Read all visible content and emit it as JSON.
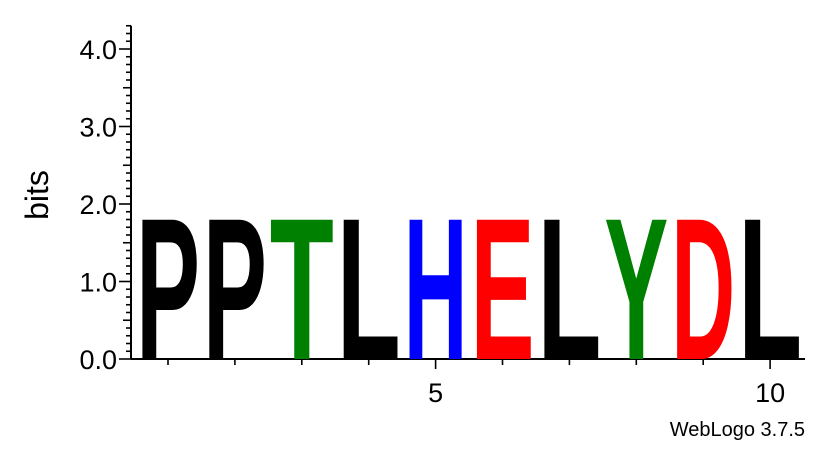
{
  "chart_data": {
    "type": "sequence-logo",
    "ylabel": "bits",
    "ylim": [
      0,
      4.3
    ],
    "yticks": [
      "0.0",
      "1.0",
      "2.0",
      "3.0",
      "4.0"
    ],
    "yticks_values": [
      0,
      1,
      2,
      3,
      4
    ],
    "xticks": [
      "5",
      "10"
    ],
    "xticks_values": [
      5,
      10
    ],
    "xlim": [
      0.5,
      10.5
    ],
    "positions": [
      {
        "position": 1,
        "letter": "P",
        "bits": 1.88
      },
      {
        "position": 2,
        "letter": "P",
        "bits": 1.88
      },
      {
        "position": 3,
        "letter": "T",
        "bits": 1.88
      },
      {
        "position": 4,
        "letter": "L",
        "bits": 1.88
      },
      {
        "position": 5,
        "letter": "H",
        "bits": 1.88
      },
      {
        "position": 6,
        "letter": "E",
        "bits": 1.88
      },
      {
        "position": 7,
        "letter": "L",
        "bits": 1.88
      },
      {
        "position": 8,
        "letter": "Y",
        "bits": 1.88
      },
      {
        "position": 9,
        "letter": "D",
        "bits": 1.88
      },
      {
        "position": 10,
        "letter": "L",
        "bits": 1.88
      }
    ],
    "colors": {
      "P": "#000000",
      "T": "#008000",
      "L": "#000000",
      "H": "#0000ff",
      "E": "#ff0000",
      "Y": "#008000",
      "D": "#ff0000"
    }
  },
  "footer": {
    "text": "WebLogo 3.7.5"
  }
}
